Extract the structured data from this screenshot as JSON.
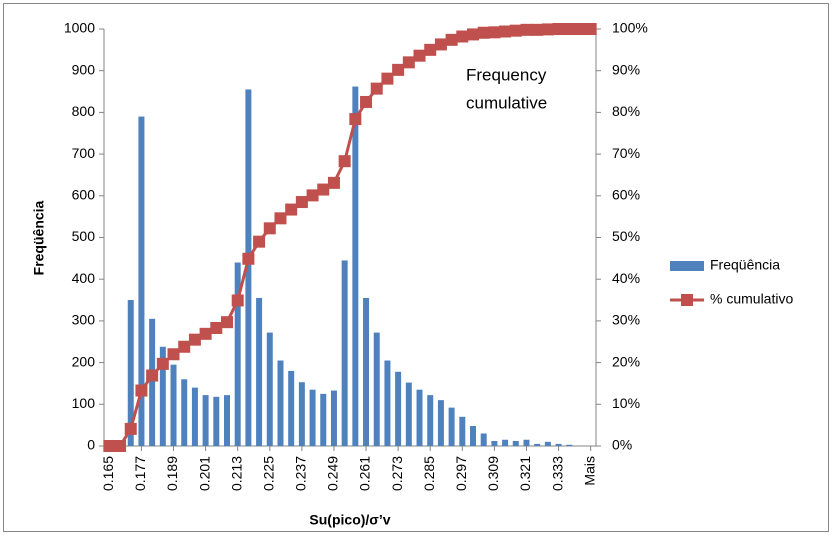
{
  "chart_data": {
    "type": "bar",
    "x_label": "Su(pico)/σ’v",
    "y_label": "Freqüência",
    "annotation": [
      "Frequency",
      "cumulative"
    ],
    "categories": [
      "0.165",
      null,
      null,
      "0.177",
      null,
      null,
      "0.189",
      null,
      null,
      "0.201",
      null,
      null,
      "0.213",
      null,
      null,
      "0.225",
      null,
      null,
      "0.237",
      null,
      null,
      "0.249",
      null,
      null,
      "0.261",
      null,
      null,
      "0.273",
      null,
      null,
      "0.285",
      null,
      null,
      "0.297",
      null,
      null,
      "0.309",
      null,
      null,
      "0.321",
      null,
      null,
      "0.333",
      null,
      null,
      "Mais"
    ],
    "series": [
      {
        "name": "Freqüência",
        "type": "bar",
        "color": "#4f81bd",
        "values": [
          0,
          0,
          350,
          790,
          305,
          238,
          195,
          160,
          140,
          122,
          118,
          122,
          440,
          855,
          355,
          272,
          205,
          180,
          153,
          135,
          125,
          133,
          445,
          862,
          355,
          272,
          205,
          178,
          152,
          135,
          122,
          110,
          92,
          70,
          48,
          30,
          12,
          15,
          12,
          15,
          5,
          10,
          5,
          3,
          0,
          0
        ]
      },
      {
        "name": "% cumulativo",
        "type": "line",
        "axis": "y2",
        "color": "#c0504d",
        "values": [
          0,
          0,
          4.1,
          13.3,
          16.9,
          19.7,
          22,
          23.8,
          25.5,
          26.9,
          28.3,
          29.7,
          34.9,
          44.9,
          49,
          52.2,
          54.6,
          56.7,
          58.5,
          60.1,
          61.5,
          63.1,
          68.3,
          78.4,
          82.5,
          85.7,
          88.1,
          90.2,
          92,
          93.6,
          95,
          96.3,
          97.4,
          98.2,
          98.7,
          99.1,
          99.2,
          99.4,
          99.6,
          99.8,
          99.8,
          99.9,
          100,
          100,
          100,
          100
        ]
      }
    ],
    "ylim": [
      0,
      1000
    ],
    "yticks": [
      0,
      100,
      200,
      300,
      400,
      500,
      600,
      700,
      800,
      900,
      1000
    ],
    "y2lim": [
      0,
      100
    ],
    "y2ticks": [
      {
        "value": 0,
        "label": "0%"
      },
      {
        "value": 10,
        "label": "10%"
      },
      {
        "value": 20,
        "label": "20%"
      },
      {
        "value": 30,
        "label": "30%"
      },
      {
        "value": 40,
        "label": "40%"
      },
      {
        "value": 50,
        "label": "50%"
      },
      {
        "value": 60,
        "label": "60%"
      },
      {
        "value": 70,
        "label": "70%"
      },
      {
        "value": 80,
        "label": "80%"
      },
      {
        "value": 90,
        "label": "90%"
      },
      {
        "value": 100,
        "label": "100%"
      }
    ],
    "legend": "right"
  }
}
